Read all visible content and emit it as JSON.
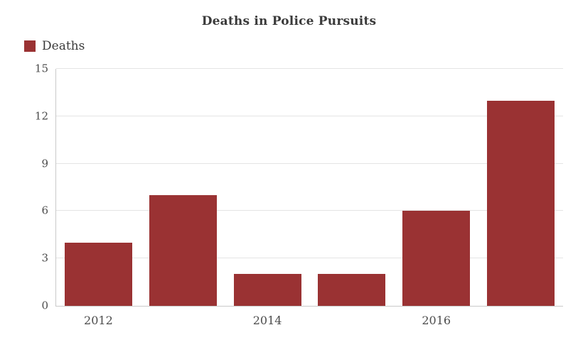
{
  "chart_data": {
    "type": "bar",
    "title": "Deaths in Police Pursuits",
    "legend": [
      {
        "label": "Deaths",
        "color": "#9a3233",
        "position": "top-left"
      }
    ],
    "bar_color": "#9a3233",
    "values": [
      4,
      7,
      2,
      2,
      6,
      13
    ],
    "x_tick_labels": [
      "2012",
      "",
      "2014",
      "",
      "2016",
      ""
    ],
    "y_ticks": [
      0,
      3,
      6,
      9,
      12,
      15
    ],
    "ylim": [
      0,
      15
    ],
    "grid": "horizontal",
    "gridline_color": "#e4e4e4",
    "axis_line_color": "#c9c9c9",
    "xlabel": "",
    "ylabel": ""
  }
}
